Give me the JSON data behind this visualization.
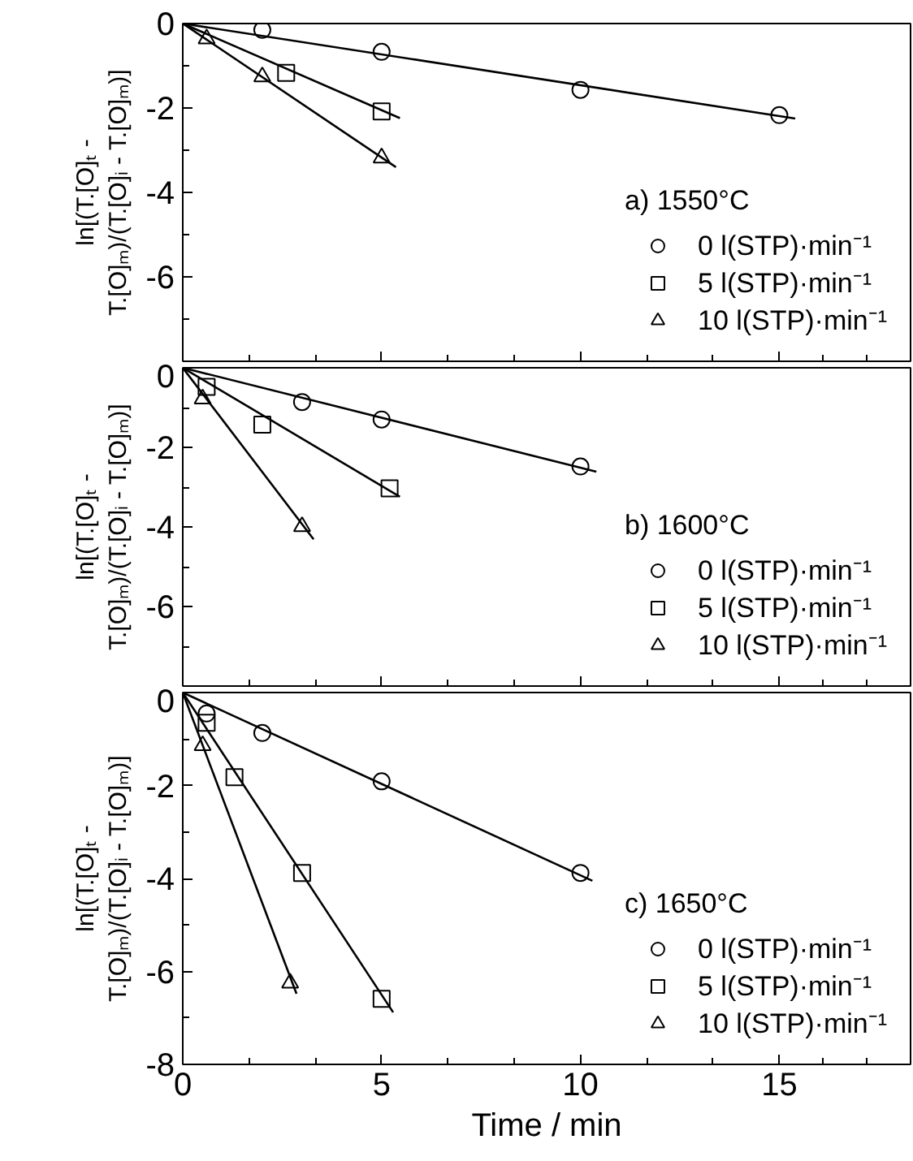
{
  "chart_data": [
    {
      "type": "scatter",
      "ylabel": "ln[(T.[O]ₜ - T.[O]ₘ)/(T.[O]ᵢ - T.[O]ₘ)]",
      "legend_title": "a) 1550°C",
      "legend": "bottom right",
      "tick_labels": "y",
      "grid": false,
      "xlim": [
        0,
        18.3
      ],
      "xticks": [
        0,
        5,
        10,
        15
      ],
      "ylim": [
        -8,
        0
      ],
      "yticks": [
        0,
        -2,
        -4,
        -6
      ],
      "series": [
        {
          "name": "0 l(STP)·min⁻¹",
          "marker": "circle",
          "color": "#000000",
          "x": [
            2,
            5,
            10,
            15
          ],
          "values": [
            -0.15,
            -0.67,
            -1.57,
            -2.17
          ]
        },
        {
          "name": "5 l(STP)·min⁻¹",
          "marker": "square",
          "color": "#000000",
          "x": [
            2.6,
            5
          ],
          "values": [
            -1.17,
            -2.08
          ]
        },
        {
          "name": "10 l(STP)·min⁻¹",
          "marker": "triangle",
          "color": "#000000",
          "x": [
            0.6,
            2,
            5
          ],
          "values": [
            -0.36,
            -1.26,
            -3.18
          ]
        },
        {
          "type": "line",
          "color": "#000000",
          "x": [
            0,
            15.4
          ],
          "values": [
            0,
            -2.25
          ]
        },
        {
          "type": "line",
          "color": "#000000",
          "x": [
            0,
            5.46
          ],
          "values": [
            0,
            -2.24
          ]
        },
        {
          "type": "line",
          "color": "#000000",
          "x": [
            0,
            5.36
          ],
          "values": [
            0,
            -3.4
          ]
        }
      ]
    },
    {
      "type": "scatter",
      "ylabel": "ln[(T.[O]ₜ - T.[O]ₘ)/(T.[O]ᵢ - T.[O]ₘ)]",
      "legend_title": "b) 1600°C",
      "legend": "bottom right",
      "tick_labels": "y",
      "grid": false,
      "xlim": [
        0,
        18.3
      ],
      "xticks": [
        0,
        5,
        10,
        15
      ],
      "ylim": [
        -8,
        0
      ],
      "yticks": [
        0,
        -2,
        -4,
        -6
      ],
      "series": [
        {
          "name": "0 l(STP)·min⁻¹",
          "marker": "circle",
          "color": "#000000",
          "x": [
            3,
            5,
            10
          ],
          "values": [
            -0.86,
            -1.3,
            -2.48
          ]
        },
        {
          "name": "5 l(STP)·min⁻¹",
          "marker": "square",
          "color": "#000000",
          "x": [
            0.6,
            2,
            5.2
          ],
          "values": [
            -0.48,
            -1.43,
            -3.03
          ]
        },
        {
          "name": "10 l(STP)·min⁻¹",
          "marker": "triangle",
          "color": "#000000",
          "x": [
            0.5,
            3
          ],
          "values": [
            -0.78,
            -3.99
          ]
        },
        {
          "type": "line",
          "color": "#000000",
          "x": [
            0,
            10.4
          ],
          "values": [
            0,
            -2.61
          ]
        },
        {
          "type": "line",
          "color": "#000000",
          "x": [
            0,
            5.46
          ],
          "values": [
            0,
            -3.24
          ]
        },
        {
          "type": "line",
          "color": "#000000",
          "x": [
            0,
            3.29
          ],
          "values": [
            0,
            -4.31
          ]
        }
      ]
    },
    {
      "type": "scatter",
      "xlabel": "Time / min",
      "ylabel": "ln[(T.[O]ₜ - T.[O]ₘ)/(T.[O]ᵢ - T.[O]ₘ)]",
      "legend_title": "c) 1650°C",
      "legend": "bottom right",
      "grid": false,
      "xlim": [
        0,
        18.3
      ],
      "xticks": [
        0,
        5,
        10,
        15
      ],
      "ylim": [
        -8,
        0
      ],
      "yticks": [
        0,
        -2,
        -4,
        -6,
        -8
      ],
      "series": [
        {
          "name": "0 l(STP)·min⁻¹",
          "marker": "circle",
          "color": "#000000",
          "x": [
            0.6,
            2,
            5,
            10
          ],
          "values": [
            -0.45,
            -0.87,
            -1.91,
            -3.88
          ]
        },
        {
          "name": "5 l(STP)·min⁻¹",
          "marker": "square",
          "color": "#000000",
          "x": [
            0.6,
            1.3,
            3,
            5
          ],
          "values": [
            -0.65,
            -1.82,
            -3.88,
            -6.59
          ]
        },
        {
          "name": "10 l(STP)·min⁻¹",
          "marker": "triangle",
          "color": "#000000",
          "x": [
            0.5,
            2.7
          ],
          "values": [
            -1.14,
            -6.25
          ]
        },
        {
          "type": "line",
          "color": "#000000",
          "x": [
            0,
            10.3
          ],
          "values": [
            0,
            -4.05
          ]
        },
        {
          "type": "line",
          "color": "#000000",
          "x": [
            0,
            5.29
          ],
          "values": [
            0,
            -6.88
          ]
        },
        {
          "type": "line",
          "color": "#000000",
          "x": [
            0,
            2.86
          ],
          "values": [
            0,
            -6.48
          ]
        }
      ]
    }
  ]
}
